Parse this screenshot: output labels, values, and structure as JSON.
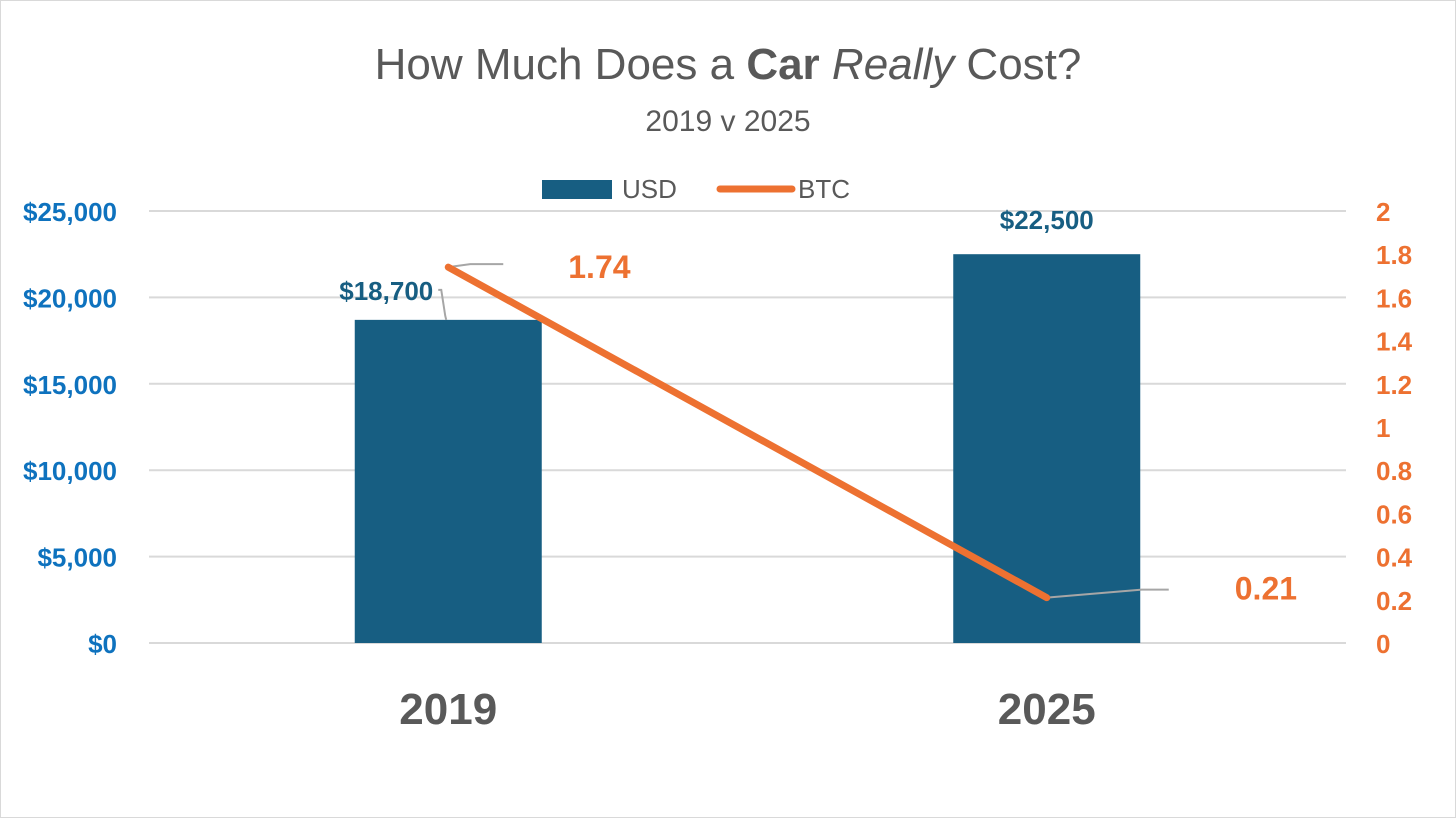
{
  "chart_data": {
    "type": "bar+line",
    "title": {
      "parts": [
        {
          "text": "How Much Does a ",
          "style": "normal"
        },
        {
          "text": "Car",
          "style": "bold"
        },
        {
          "text": " ",
          "style": "normal"
        },
        {
          "text": "Really",
          "style": "italic"
        },
        {
          "text": " Cost?",
          "style": "normal"
        }
      ]
    },
    "subtitle": "2019 v 2025",
    "categories": [
      "2019",
      "2025"
    ],
    "series": [
      {
        "name": "USD",
        "type": "bar",
        "axis": "left",
        "values": [
          18700,
          22500
        ],
        "data_labels": [
          "$18,700",
          "$22,500"
        ]
      },
      {
        "name": "BTC",
        "type": "line",
        "axis": "right",
        "values": [
          1.74,
          0.21
        ],
        "data_labels": [
          "1.74",
          "0.21"
        ]
      }
    ],
    "y_left": {
      "min": 0,
      "max": 25000,
      "ticks": [
        "$0",
        "$5,000",
        "$10,000",
        "$15,000",
        "$20,000",
        "$25,000"
      ],
      "tick_values": [
        0,
        5000,
        10000,
        15000,
        20000,
        25000
      ]
    },
    "y_right": {
      "min": 0,
      "max": 2,
      "ticks": [
        "0",
        "0.2",
        "0.4",
        "0.6",
        "0.8",
        "1",
        "1.2",
        "1.4",
        "1.6",
        "1.8",
        "2"
      ],
      "tick_values": [
        0,
        0.2,
        0.4,
        0.6,
        0.8,
        1,
        1.2,
        1.4,
        1.6,
        1.8,
        2
      ]
    },
    "legend": {
      "position": "top",
      "entries": [
        "USD",
        "BTC"
      ]
    },
    "grid": true,
    "colors": {
      "bar": "#175E82",
      "line": "#ED7131",
      "left_axis": "#0E72BE",
      "right_axis": "#ED7131",
      "grid": "#D9D9D9",
      "text": "#595959",
      "leader": "#A6A6A6"
    }
  }
}
